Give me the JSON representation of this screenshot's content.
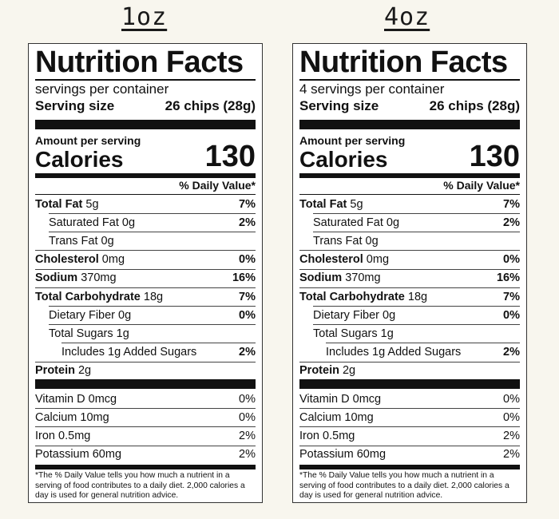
{
  "labels": [
    {
      "size_title": "1oz",
      "panel_title": "Nutrition Facts",
      "servings_per_container": "servings per container",
      "serving_size_label": "Serving size",
      "serving_size_value": "26 chips (28g)",
      "amount_per_serving": "Amount per serving",
      "calories_label": "Calories",
      "calories_value": "130",
      "daily_value_header": "% Daily Value*",
      "nutrients": [
        {
          "name": "Total Fat",
          "amount": "5g",
          "dv": "7%",
          "indent": 0,
          "bold": true
        },
        {
          "name": "Saturated Fat",
          "amount": "0g",
          "dv": "2%",
          "indent": 1,
          "bold": false
        },
        {
          "name": "Trans Fat",
          "amount": "0g",
          "dv": "",
          "indent": 1,
          "bold": false
        },
        {
          "name": "Cholesterol",
          "amount": "0mg",
          "dv": "0%",
          "indent": 0,
          "bold": true
        },
        {
          "name": "Sodium",
          "amount": "370mg",
          "dv": "16%",
          "indent": 0,
          "bold": true
        },
        {
          "name": "Total Carbohydrate",
          "amount": "18g",
          "dv": "7%",
          "indent": 0,
          "bold": true
        },
        {
          "name": "Dietary Fiber",
          "amount": "0g",
          "dv": "0%",
          "indent": 1,
          "bold": false
        },
        {
          "name": "Total Sugars",
          "amount": "1g",
          "dv": "",
          "indent": 1,
          "bold": false
        },
        {
          "name": "Includes 1g Added Sugars",
          "amount": "",
          "dv": "2%",
          "indent": 2,
          "bold": false
        },
        {
          "name": "Protein",
          "amount": "2g",
          "dv": "",
          "indent": 0,
          "bold": true
        }
      ],
      "vitamins": [
        {
          "name": "Vitamin D",
          "amount": "0mcg",
          "dv": "0%"
        },
        {
          "name": "Calcium",
          "amount": "10mg",
          "dv": "0%"
        },
        {
          "name": "Iron",
          "amount": "0.5mg",
          "dv": "2%"
        },
        {
          "name": "Potassium",
          "amount": "60mg",
          "dv": "2%"
        }
      ],
      "footnote": "*The % Daily Value tells you how much a nutrient in a serving of food contributes to a daily diet. 2,000 calories a day is used for general nutrition advice."
    },
    {
      "size_title": "4oz",
      "panel_title": "Nutrition Facts",
      "servings_per_container": "4 servings per container",
      "serving_size_label": "Serving size",
      "serving_size_value": "26 chips (28g)",
      "amount_per_serving": "Amount per serving",
      "calories_label": "Calories",
      "calories_value": "130",
      "daily_value_header": "% Daily Value*",
      "nutrients": [
        {
          "name": "Total Fat",
          "amount": "5g",
          "dv": "7%",
          "indent": 0,
          "bold": true
        },
        {
          "name": "Saturated Fat",
          "amount": "0g",
          "dv": "2%",
          "indent": 1,
          "bold": false
        },
        {
          "name": "Trans Fat",
          "amount": "0g",
          "dv": "",
          "indent": 1,
          "bold": false
        },
        {
          "name": "Cholesterol",
          "amount": "0mg",
          "dv": "0%",
          "indent": 0,
          "bold": true
        },
        {
          "name": "Sodium",
          "amount": "370mg",
          "dv": "16%",
          "indent": 0,
          "bold": true
        },
        {
          "name": "Total Carbohydrate",
          "amount": "18g",
          "dv": "7%",
          "indent": 0,
          "bold": true
        },
        {
          "name": "Dietary Fiber",
          "amount": "0g",
          "dv": "0%",
          "indent": 1,
          "bold": false
        },
        {
          "name": "Total Sugars",
          "amount": "1g",
          "dv": "",
          "indent": 1,
          "bold": false
        },
        {
          "name": "Includes 1g Added Sugars",
          "amount": "",
          "dv": "2%",
          "indent": 2,
          "bold": false
        },
        {
          "name": "Protein",
          "amount": "2g",
          "dv": "",
          "indent": 0,
          "bold": true
        }
      ],
      "vitamins": [
        {
          "name": "Vitamin D",
          "amount": "0mcg",
          "dv": "0%"
        },
        {
          "name": "Calcium",
          "amount": "10mg",
          "dv": "0%"
        },
        {
          "name": "Iron",
          "amount": "0.5mg",
          "dv": "2%"
        },
        {
          "name": "Potassium",
          "amount": "60mg",
          "dv": "2%"
        }
      ],
      "footnote": "*The % Daily Value tells you how much a nutrient in a serving of food contributes to a daily diet. 2,000 calories a day is used for general nutrition advice."
    }
  ]
}
